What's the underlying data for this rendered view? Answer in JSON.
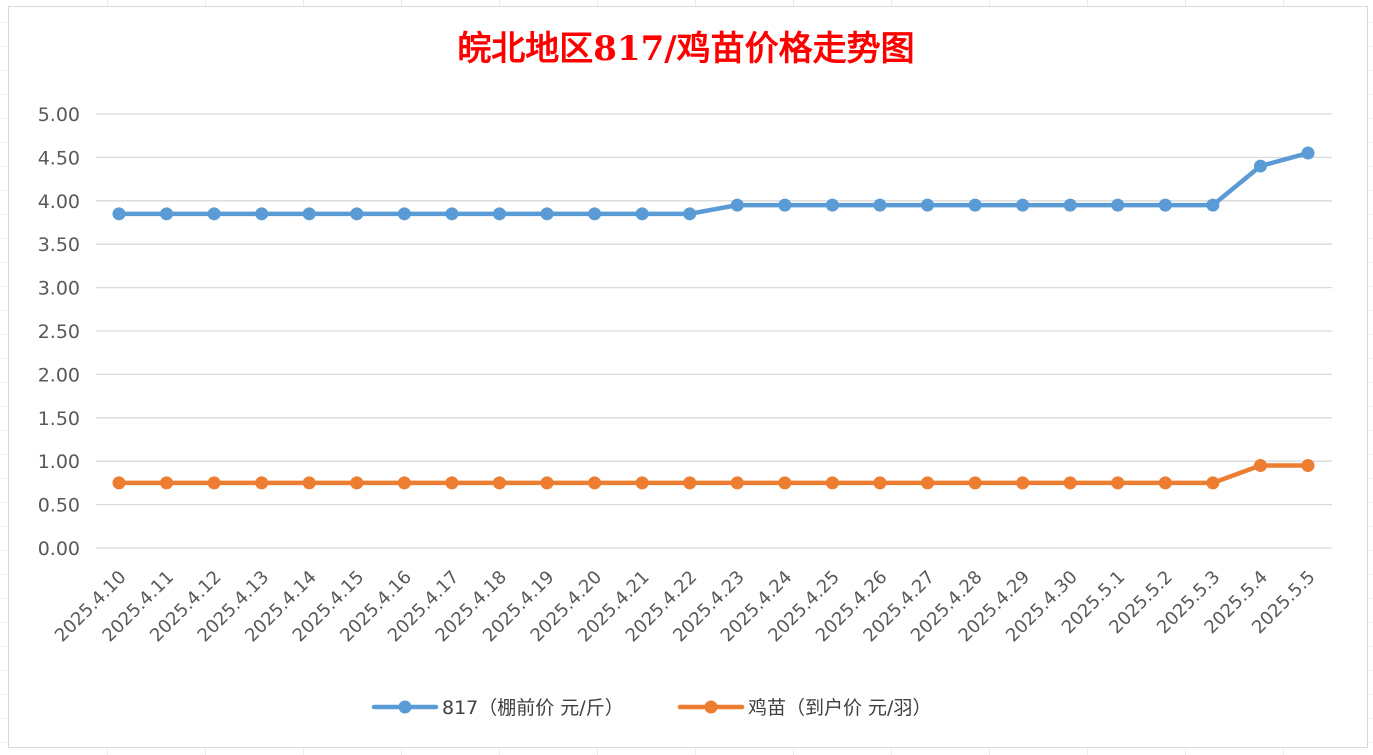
{
  "chart_data": {
    "type": "line",
    "title": "皖北地区817/鸡苗价格走势图",
    "categories": [
      "2025.4.10",
      "2025.4.11",
      "2025.4.12",
      "2025.4.13",
      "2025.4.14",
      "2025.4.15",
      "2025.4.16",
      "2025.4.17",
      "2025.4.18",
      "2025.4.19",
      "2025.4.20",
      "2025.4.21",
      "2025.4.22",
      "2025.4.23",
      "2025.4.24",
      "2025.4.25",
      "2025.4.26",
      "2025.4.27",
      "2025.4.28",
      "2025.4.29",
      "2025.4.30",
      "2025.5.1",
      "2025.5.2",
      "2025.5.3",
      "2025.5.4",
      "2025.5.5"
    ],
    "series": [
      {
        "name": "817（棚前价 元/斤）",
        "color": "#5b9bd5",
        "values": [
          3.85,
          3.85,
          3.85,
          3.85,
          3.85,
          3.85,
          3.85,
          3.85,
          3.85,
          3.85,
          3.85,
          3.85,
          3.85,
          3.95,
          3.95,
          3.95,
          3.95,
          3.95,
          3.95,
          3.95,
          3.95,
          3.95,
          3.95,
          3.95,
          4.4,
          4.55
        ]
      },
      {
        "name": "鸡苗（到户价 元/羽）",
        "color": "#ed7d31",
        "values": [
          0.75,
          0.75,
          0.75,
          0.75,
          0.75,
          0.75,
          0.75,
          0.75,
          0.75,
          0.75,
          0.75,
          0.75,
          0.75,
          0.75,
          0.75,
          0.75,
          0.75,
          0.75,
          0.75,
          0.75,
          0.75,
          0.75,
          0.75,
          0.75,
          0.95,
          0.95
        ]
      }
    ],
    "yticks": [
      "0.00",
      "0.50",
      "1.00",
      "1.50",
      "2.00",
      "2.50",
      "3.00",
      "3.50",
      "4.00",
      "4.50",
      "5.00"
    ],
    "ylim": [
      0,
      5
    ],
    "grid": true,
    "legend": "bottom"
  }
}
